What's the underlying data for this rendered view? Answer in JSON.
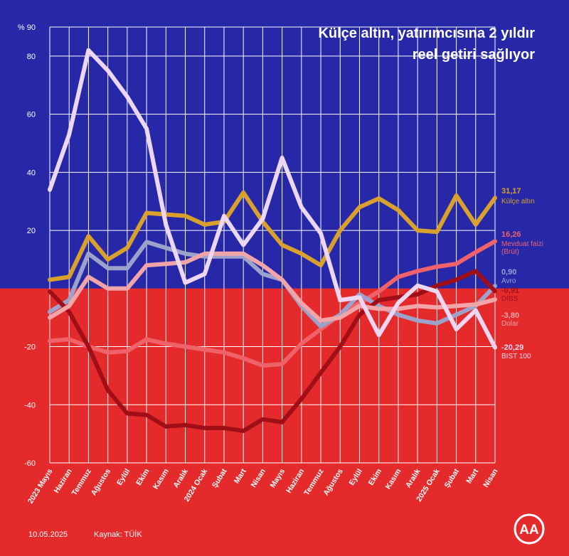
{
  "title_line1": "Külçe altın, yatırımcısına 2 yıldır",
  "title_line2": "reel getiri sağlıyor",
  "footer": {
    "date": "10.05.2025",
    "source": "Kaynak: TÜİK"
  },
  "logo_text": "AA",
  "colors": {
    "top_bg": "#2628a8",
    "bottom_bg": "#e52a2c",
    "grid": "#ffffff"
  },
  "chart_data": {
    "type": "line",
    "title": "Külçe altın, yatırımcısına 2 yıldır reel getiri sağlıyor",
    "ylabel": "%",
    "ylim": [
      -60,
      90
    ],
    "yticks": [
      -60,
      -40,
      -20,
      20,
      40,
      60,
      80,
      90
    ],
    "ytick_labels": [
      "-60",
      "-40",
      "-20",
      "20",
      "40",
      "60",
      "80",
      "% 90"
    ],
    "grid": true,
    "categories": [
      "2023 Mayıs",
      "Haziran",
      "Temmuz",
      "Ağustos",
      "Eylül",
      "Ekim",
      "Kasım",
      "Aralık",
      "2024 Ocak",
      "Şubat",
      "Mart",
      "Nisan",
      "Mayıs",
      "Haziran",
      "Temmuz",
      "Ağustos",
      "Eylül",
      "Ekim",
      "Kasım",
      "Aralık",
      "2025 Ocak",
      "Şubat",
      "Mart",
      "Nisan"
    ],
    "series": [
      {
        "name": "Külçe altın",
        "value_label": "31,17",
        "color": "#d9a12b",
        "values": [
          3,
          4,
          18,
          10,
          14,
          26,
          25.5,
          25,
          22,
          23,
          33,
          23,
          15,
          12,
          8,
          20,
          28,
          31,
          27,
          20,
          19.5,
          32,
          22,
          31.17
        ]
      },
      {
        "name": "Mevduat faizi (Brüt)",
        "value_label": "16,26",
        "color": "#f0626a",
        "values": [
          -18,
          -17.5,
          -20,
          -22,
          -21.5,
          -17.5,
          -19,
          -20,
          -21,
          -22,
          -24,
          -26.5,
          -26,
          -19,
          -14,
          -9,
          -5,
          -1,
          4,
          6,
          7.5,
          8.5,
          12.5,
          16.26
        ]
      },
      {
        "name": "Avro",
        "value_label": "0,90",
        "color": "#9da2cc",
        "values": [
          -8,
          -4,
          12,
          7,
          7,
          16,
          14,
          12,
          11,
          11,
          11,
          5,
          3,
          -6,
          -13,
          -9,
          -2,
          -6,
          -9,
          -11,
          -12,
          -9,
          -6,
          0.9
        ]
      },
      {
        "name": "DİBS",
        "value_label": "-0,91",
        "color": "#a00f18",
        "values": [
          -1,
          -8,
          -20,
          -35,
          -43,
          -43.5,
          -47.5,
          -47,
          -48,
          -48,
          -49,
          -45,
          -46,
          -38,
          -29,
          -20,
          -9,
          -4,
          -3,
          -2,
          1,
          3,
          6,
          -0.91
        ]
      },
      {
        "name": "Dolar",
        "value_label": "-3,80",
        "color": "#f2a5a9",
        "values": [
          -10,
          -6,
          4,
          0,
          0,
          8,
          8.5,
          9,
          12,
          12,
          12,
          8,
          3,
          -5,
          -11,
          -10,
          -6,
          -7,
          -7,
          -6,
          -6.5,
          -6,
          -5.5,
          -3.8
        ]
      },
      {
        "name": "BIST 100",
        "value_label": "-20,29",
        "color": "#ecd6f2",
        "values": [
          34,
          53,
          82,
          75,
          66,
          55,
          22,
          2,
          5,
          25,
          15,
          24,
          45,
          28,
          19,
          -4,
          -3,
          -16,
          -5,
          1,
          -1,
          -14,
          -7.5,
          -20.29
        ]
      }
    ]
  }
}
